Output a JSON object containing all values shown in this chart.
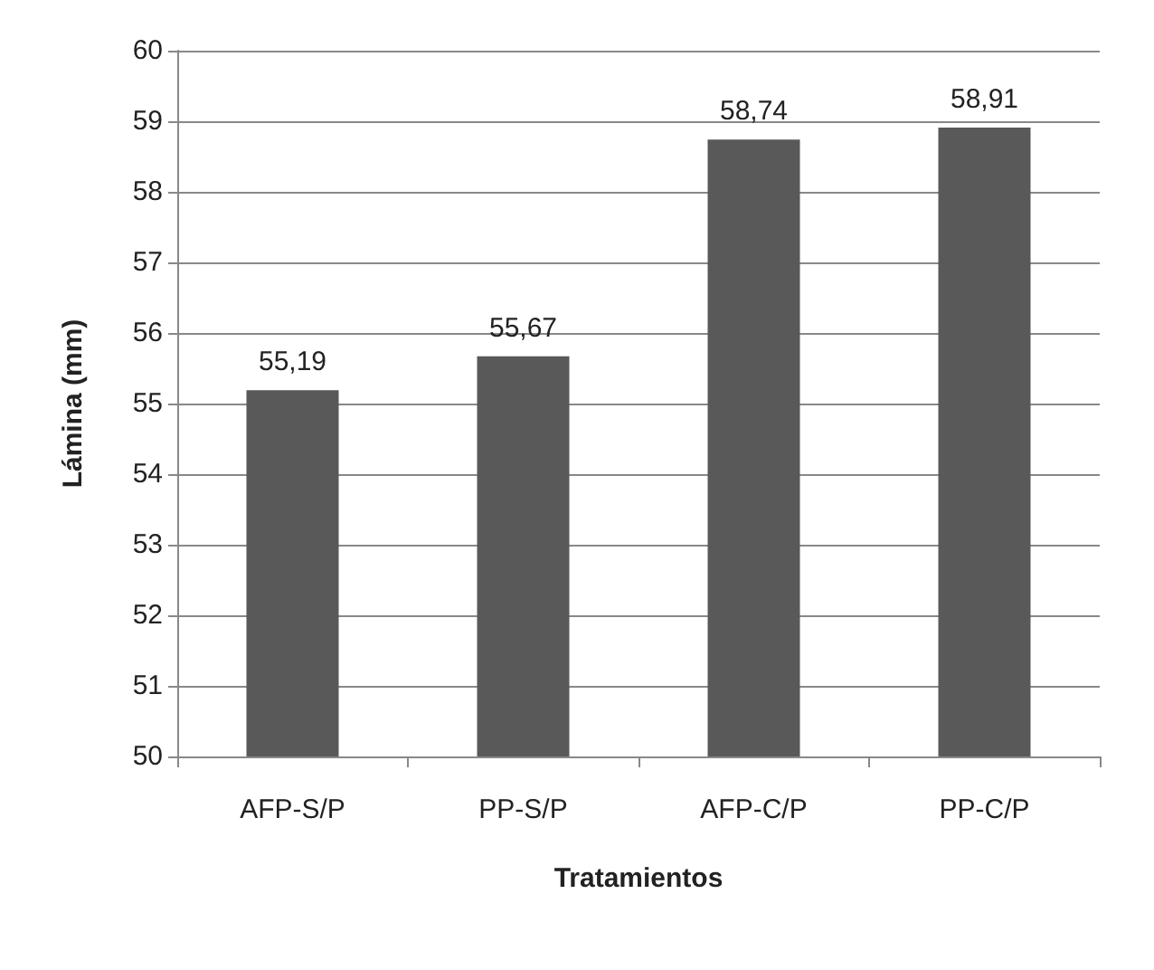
{
  "chart_data": {
    "type": "bar",
    "xlabel": "Tratamientos",
    "ylabel": "Lámina (mm)",
    "categories": [
      "AFP-S/P",
      "PP-S/P",
      "AFP-C/P",
      "PP-C/P"
    ],
    "values": [
      55.19,
      55.67,
      58.74,
      58.91
    ],
    "value_labels": [
      "55,19",
      "55,67",
      "58,74",
      "58,91"
    ],
    "color": "#595959",
    "ylim": [
      50,
      60
    ],
    "yticks": [
      50,
      51,
      52,
      53,
      54,
      55,
      56,
      57,
      58,
      59,
      60
    ],
    "grid": "y"
  }
}
